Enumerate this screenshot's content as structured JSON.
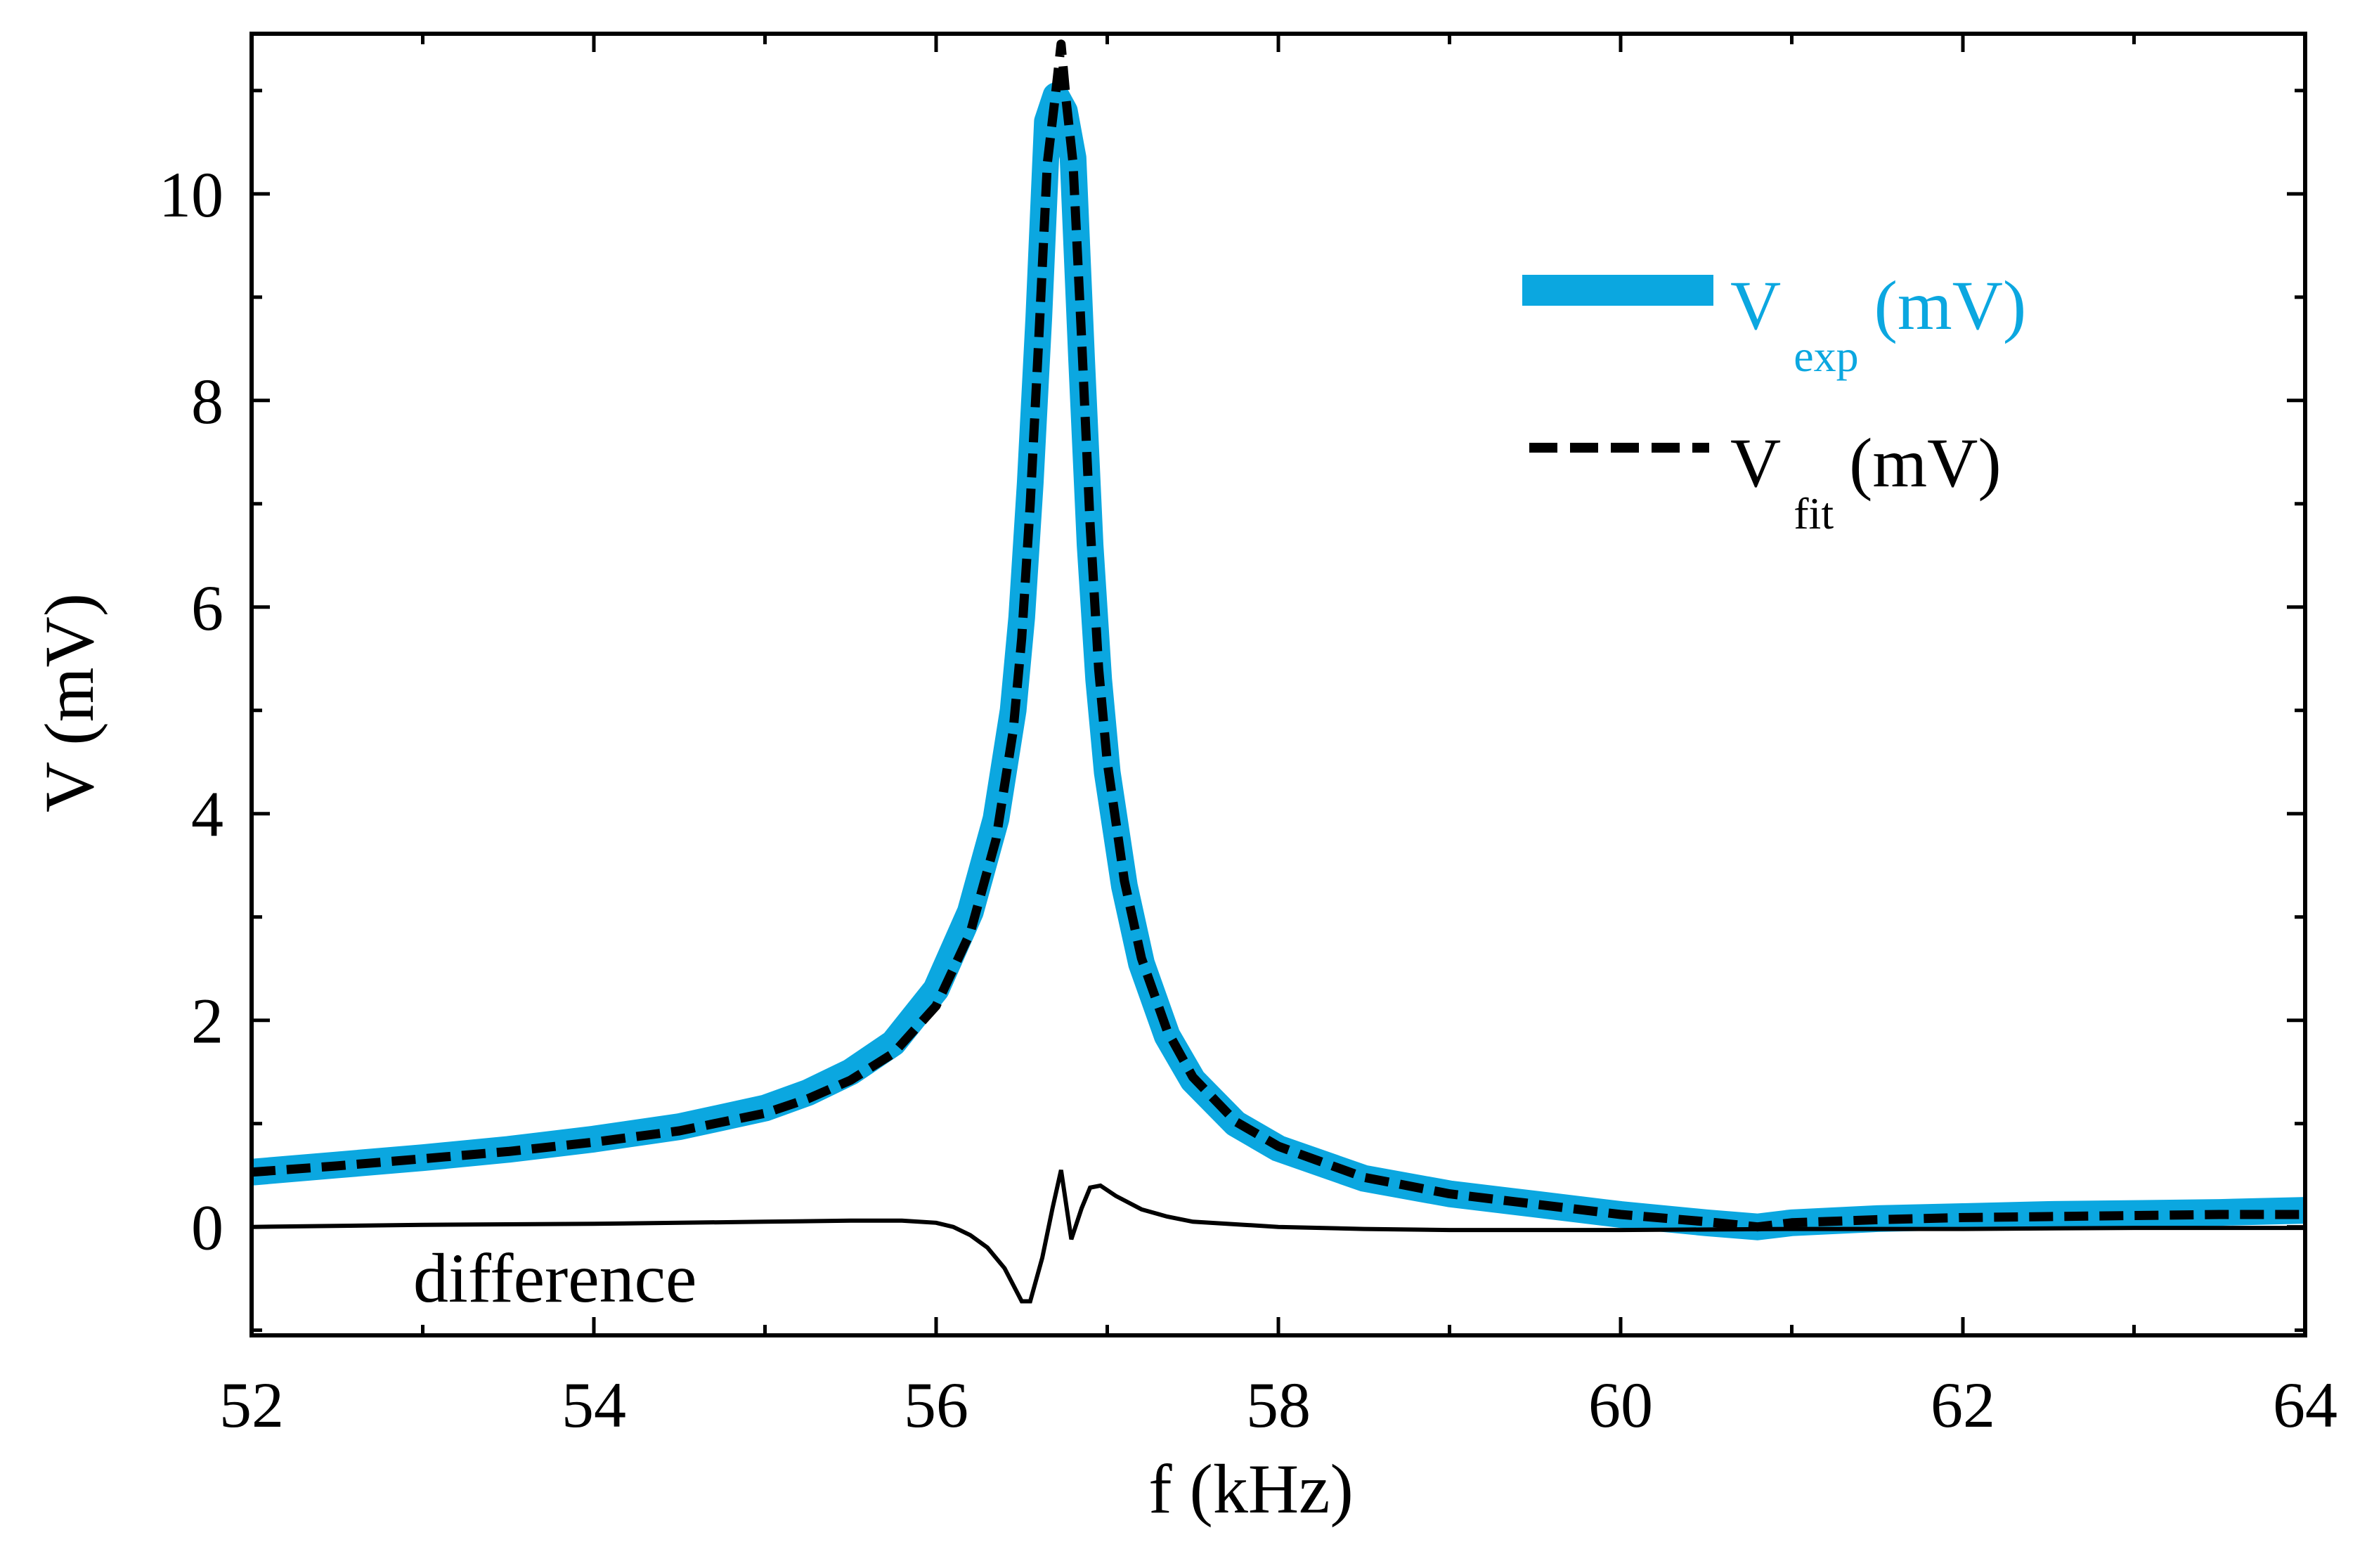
{
  "chart_data": {
    "type": "line",
    "title": "",
    "xlabel": "f (kHz)",
    "ylabel": "V (mV)",
    "xlim": [
      52,
      64
    ],
    "ylim": [
      -1.05,
      11.55
    ],
    "x_ticks": [
      52,
      54,
      56,
      58,
      60,
      62,
      64
    ],
    "y_ticks": [
      0,
      2,
      4,
      6,
      8,
      10
    ],
    "x_tick_labels": [
      "52",
      "54",
      "56",
      "58",
      "60",
      "62",
      "64"
    ],
    "y_tick_labels": [
      "0",
      "2",
      "4",
      "6",
      "8",
      "10"
    ],
    "x_minor_step": 1,
    "y_minor_step": 1,
    "legend_position": "top-right",
    "annotation": "difference",
    "series": [
      {
        "name": "V_exp (mV)",
        "legend_main": "V",
        "legend_sub": "exp",
        "legend_suffix": "(mV)",
        "color": "#0BA7E0",
        "style": "solid-thick",
        "x": [
          52,
          52.5,
          53,
          53.5,
          54,
          54.5,
          55,
          55.25,
          55.5,
          55.75,
          56,
          56.2,
          56.35,
          56.45,
          56.5,
          56.55,
          56.6,
          56.65,
          56.7,
          56.75,
          56.8,
          56.85,
          56.9,
          56.95,
          57.0,
          57.1,
          57.2,
          57.35,
          57.5,
          57.75,
          58,
          58.5,
          59,
          59.5,
          60,
          60.5,
          60.8,
          61,
          61.5,
          62,
          62.5,
          63,
          63.5,
          64
        ],
        "y": [
          0.53,
          0.6,
          0.67,
          0.75,
          0.85,
          0.97,
          1.15,
          1.3,
          1.5,
          1.78,
          2.3,
          3.05,
          3.95,
          5.0,
          5.9,
          7.2,
          8.8,
          10.7,
          10.95,
          10.8,
          10.35,
          8.4,
          6.6,
          5.3,
          4.4,
          3.3,
          2.55,
          1.85,
          1.42,
          1.0,
          0.76,
          0.47,
          0.32,
          0.22,
          0.12,
          0.04,
          0.0,
          0.04,
          0.08,
          0.1,
          0.12,
          0.13,
          0.14,
          0.16
        ]
      },
      {
        "name": "V_fit (mV)",
        "legend_main": "V",
        "legend_sub": "fit",
        "legend_suffix": "(mV)",
        "color": "#000000",
        "style": "dashed",
        "x": [
          52,
          52.5,
          53,
          53.5,
          54,
          54.5,
          55,
          55.25,
          55.5,
          55.75,
          56,
          56.2,
          56.35,
          56.45,
          56.5,
          56.55,
          56.6,
          56.65,
          56.7,
          56.73,
          56.76,
          56.8,
          56.85,
          56.9,
          56.95,
          57.0,
          57.1,
          57.2,
          57.35,
          57.5,
          57.75,
          58,
          58.5,
          59,
          59.5,
          60,
          60.5,
          60.8,
          61,
          61.5,
          62,
          62.5,
          63,
          63.5,
          64
        ],
        "y": [
          0.53,
          0.59,
          0.66,
          0.73,
          0.82,
          0.93,
          1.1,
          1.24,
          1.42,
          1.68,
          2.14,
          2.85,
          3.75,
          4.8,
          5.7,
          7.0,
          8.6,
          10.3,
          11.0,
          11.45,
          10.9,
          10.3,
          8.6,
          6.8,
          5.4,
          4.5,
          3.35,
          2.6,
          1.9,
          1.45,
          1.02,
          0.78,
          0.48,
          0.32,
          0.22,
          0.12,
          0.05,
          0.0,
          0.04,
          0.07,
          0.09,
          0.1,
          0.11,
          0.12,
          0.12
        ]
      },
      {
        "name": "difference",
        "color": "#000000",
        "style": "solid-thin",
        "x": [
          52,
          53,
          54,
          55,
          55.5,
          55.8,
          56,
          56.1,
          56.2,
          56.3,
          56.4,
          56.5,
          56.55,
          56.62,
          56.68,
          56.73,
          56.79,
          56.85,
          56.9,
          56.96,
          57.05,
          57.2,
          57.35,
          57.5,
          57.8,
          58,
          58.5,
          59,
          60,
          61,
          62,
          63,
          64
        ],
        "y": [
          0.0,
          0.02,
          0.03,
          0.05,
          0.06,
          0.06,
          0.04,
          0.0,
          -0.08,
          -0.2,
          -0.4,
          -0.72,
          -0.72,
          -0.3,
          0.18,
          0.55,
          -0.12,
          0.18,
          0.38,
          0.4,
          0.3,
          0.17,
          0.1,
          0.05,
          0.02,
          0.0,
          -0.02,
          -0.03,
          -0.03,
          -0.02,
          -0.02,
          -0.01,
          -0.01
        ]
      }
    ]
  }
}
